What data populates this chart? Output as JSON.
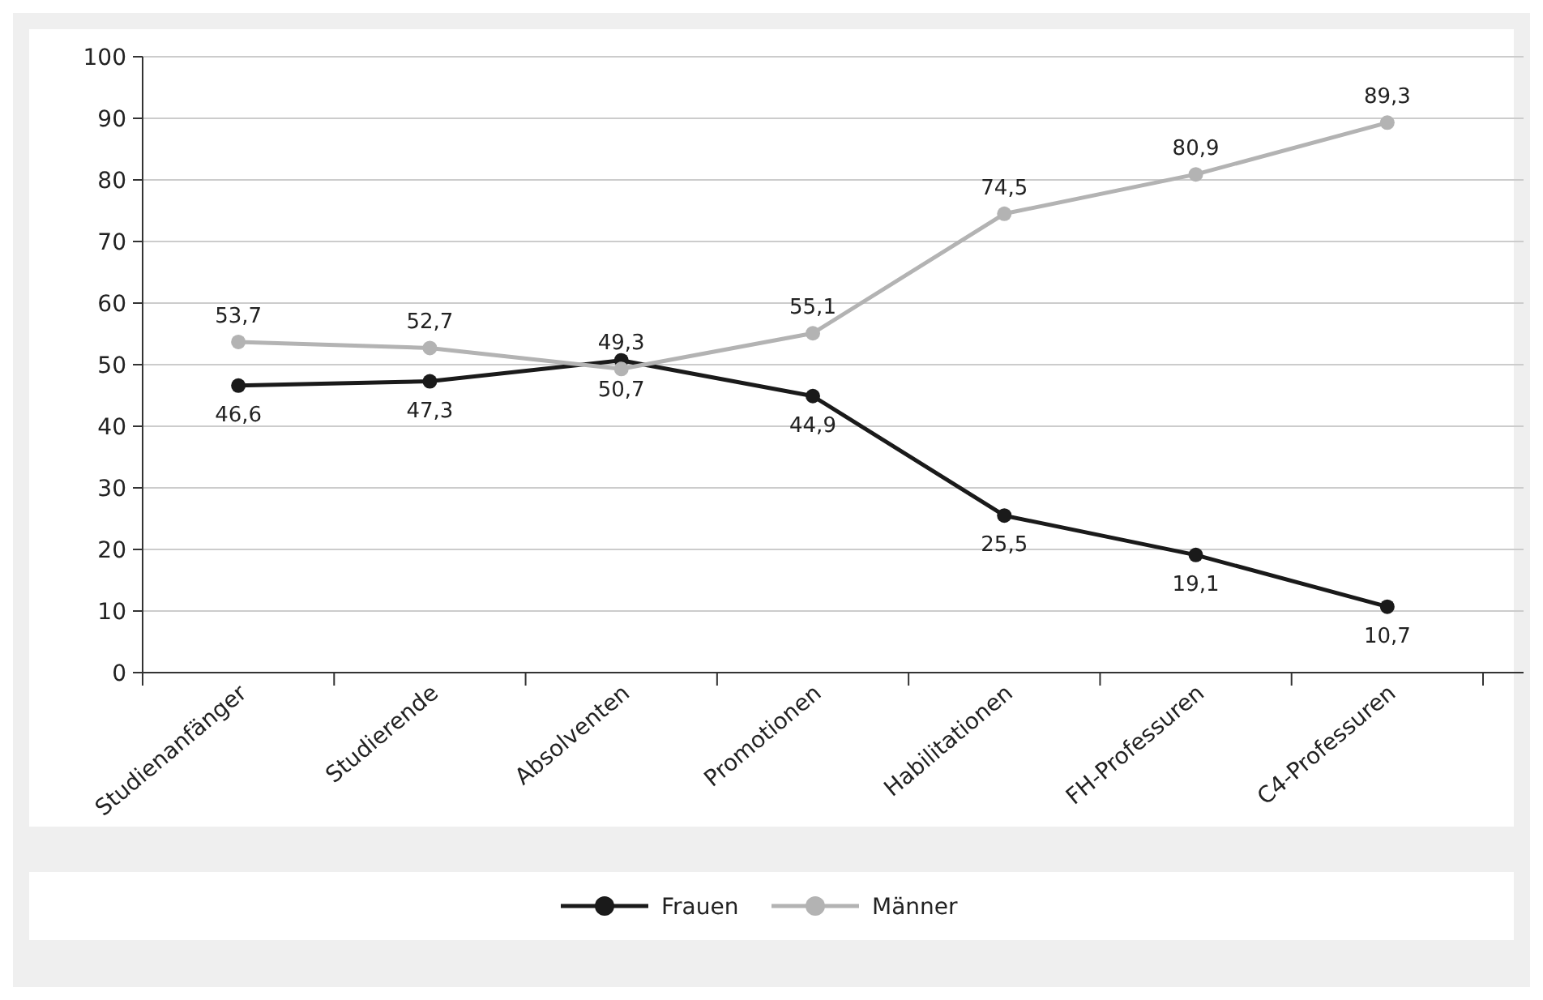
{
  "chart_data": {
    "type": "line",
    "categories": [
      "Studienanfänger",
      "Studierende",
      "Absolventen",
      "Promotionen",
      "Habilitationen",
      "FH-Professuren",
      "C4-Professuren"
    ],
    "series": [
      {
        "name": "Frauen",
        "color": "#1a1a1a",
        "values": [
          46.6,
          47.3,
          50.7,
          44.9,
          25.5,
          19.1,
          10.7
        ],
        "value_labels": [
          "46,6",
          "47,3",
          "50,7",
          "44,9",
          "25,5",
          "19,1",
          "10,7"
        ]
      },
      {
        "name": "Männer",
        "color": "#b3b3b3",
        "values": [
          53.7,
          52.7,
          49.3,
          55.1,
          74.5,
          80.9,
          89.3
        ],
        "value_labels": [
          "53,7",
          "52,7",
          "49,3",
          "55,1",
          "74,5",
          "80,9",
          "89,3"
        ]
      }
    ],
    "ylim": [
      0,
      100
    ],
    "yticks": [
      0,
      10,
      20,
      30,
      40,
      50,
      60,
      70,
      80,
      90,
      100
    ],
    "grid": "y",
    "legend": "bottom",
    "marker": "circle",
    "line_style": "solid"
  }
}
